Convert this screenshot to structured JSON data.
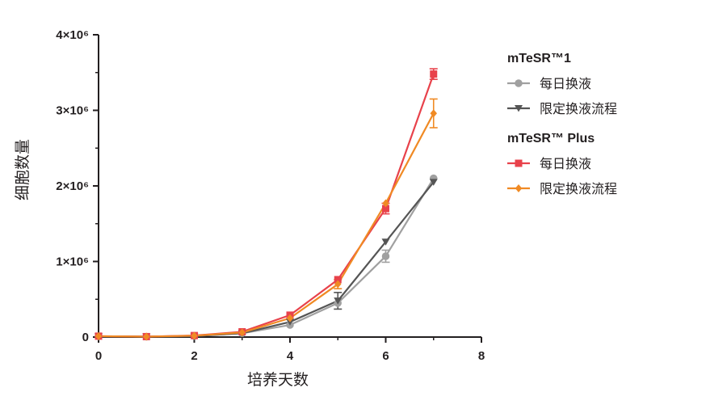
{
  "chart_data": {
    "type": "line",
    "xlabel": "培养天数",
    "ylabel": "细胞数量",
    "xlim": [
      0,
      8
    ],
    "ylim": [
      0,
      4000000
    ],
    "xticks": [
      "0",
      "2",
      "4",
      "6",
      "8"
    ],
    "yticks": [
      "0",
      "1×10⁶",
      "2×10⁶",
      "3×10⁶",
      "4×10⁶"
    ],
    "grid": false,
    "legend_position": "right",
    "legend_groups": [
      {
        "title": "mTeSR™1",
        "series": [
          0,
          1
        ]
      },
      {
        "title": "mTeSR™ Plus",
        "series": [
          2,
          3
        ]
      }
    ],
    "series": [
      {
        "name": "每日换液",
        "color": "#a0a0a0",
        "marker": "circle",
        "x": [
          0,
          1,
          2,
          3,
          4,
          5,
          6,
          7
        ],
        "y": [
          10000,
          5000,
          15000,
          50000,
          160000,
          450000,
          1070000,
          2100000
        ],
        "err": [
          0,
          0,
          0,
          0,
          0,
          0,
          80000,
          0
        ]
      },
      {
        "name": "限定换液流程",
        "color": "#555555",
        "marker": "triangle-down",
        "x": [
          0,
          1,
          2,
          3,
          4,
          5,
          6,
          7
        ],
        "y": [
          10000,
          5000,
          12000,
          50000,
          200000,
          480000,
          1260000,
          2050000
        ],
        "err": [
          0,
          0,
          0,
          0,
          0,
          110000,
          0,
          0
        ]
      },
      {
        "name": "每日换液",
        "color": "#e8424b",
        "marker": "square",
        "x": [
          0,
          1,
          2,
          3,
          4,
          5,
          6,
          7
        ],
        "y": [
          12000,
          6000,
          20000,
          70000,
          290000,
          760000,
          1700000,
          3480000
        ],
        "err": [
          0,
          0,
          0,
          0,
          0,
          0,
          70000,
          70000
        ]
      },
      {
        "name": "限定换液流程",
        "color": "#f08a24",
        "marker": "diamond",
        "x": [
          0,
          1,
          2,
          3,
          4,
          5,
          6,
          7
        ],
        "y": [
          12000,
          6000,
          18000,
          60000,
          250000,
          700000,
          1770000,
          2960000
        ],
        "err": [
          0,
          0,
          0,
          0,
          0,
          60000,
          0,
          190000
        ]
      }
    ]
  }
}
